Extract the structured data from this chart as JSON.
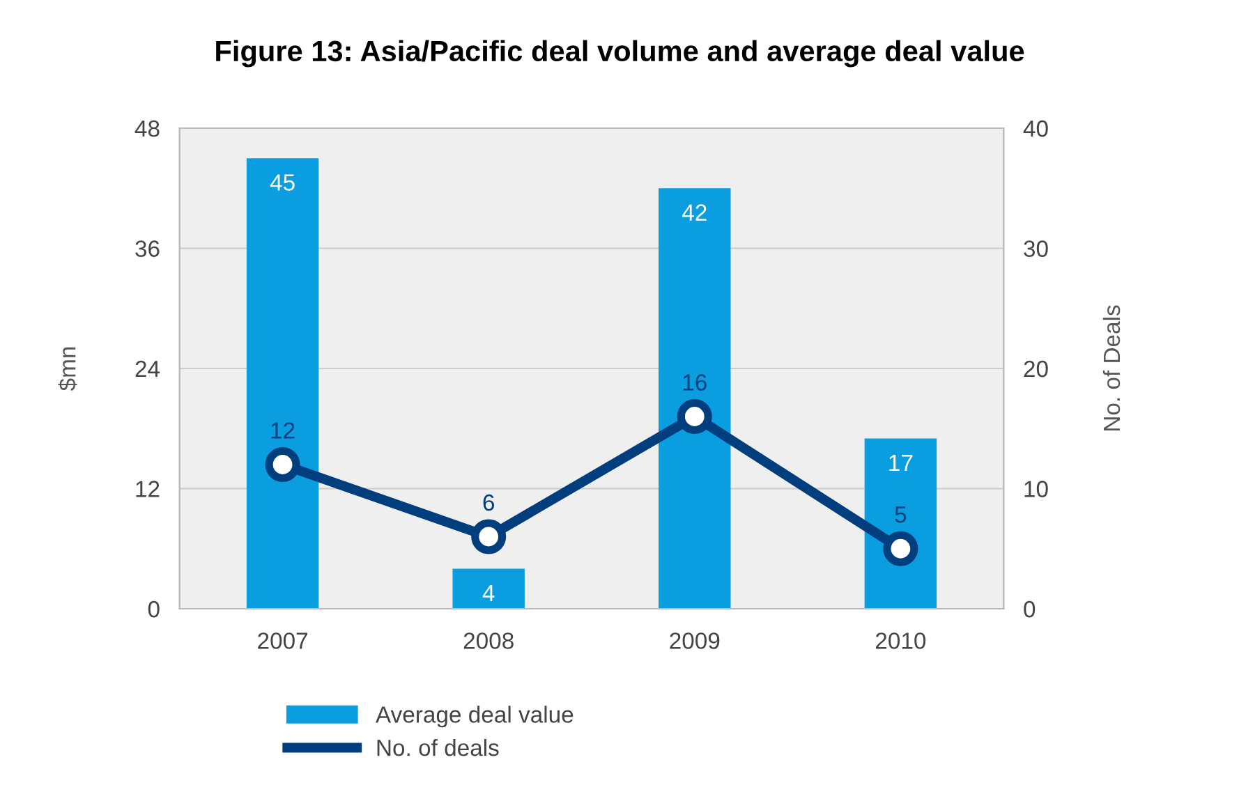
{
  "chart_data": {
    "type": "bar",
    "title": "Figure 13: Asia/Pacific deal volume and average deal value",
    "ylabel": "$mn",
    "y2label": "No. of Deals",
    "categories": [
      "2007",
      "2008",
      "2009",
      "2010"
    ],
    "series": [
      {
        "name": "Average deal value",
        "color": "#0a9ee0",
        "values": [
          45,
          4,
          42,
          17
        ]
      },
      {
        "name": "No. of deals",
        "type": "line",
        "axis": "y2",
        "color": "#003e7e",
        "values": [
          12,
          6,
          16,
          5
        ],
        "marker": "circle"
      }
    ],
    "ylim": [
      0,
      48
    ],
    "yticks": [
      0,
      12,
      24,
      36,
      48
    ],
    "y2lim": [
      0,
      40
    ],
    "y2ticks": [
      0,
      10,
      20,
      30,
      40
    ],
    "grid": "y",
    "data_labels": true,
    "legend": "bottom"
  }
}
